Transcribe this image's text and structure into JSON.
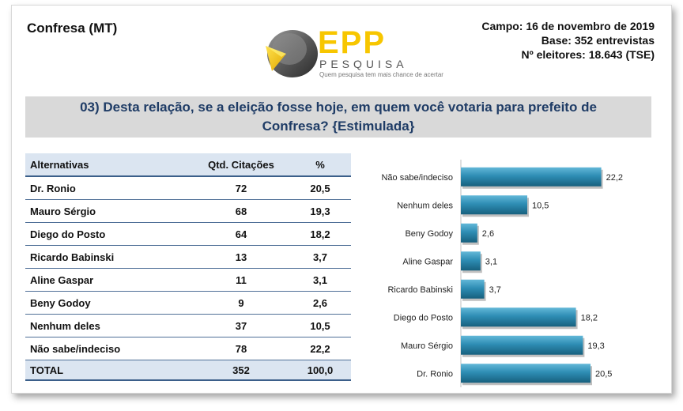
{
  "header": {
    "place": "Confresa (MT)",
    "field_date": "Campo: 16 de novembro de 2019",
    "base": "Base: 352 entrevistas",
    "voters": "Nº eleitores: 18.643 (TSE)"
  },
  "logo": {
    "brand": "EPP",
    "subtitle": "PESQUISA",
    "tagline": "Quem pesquisa tem mais chance de acertar"
  },
  "question": "03) Desta relação, se a eleição fosse hoje, em quem você votaria para prefeito de Confresa? {Estimulada}",
  "table": {
    "headers": [
      "Alternativas",
      "Qtd. Citações",
      "%"
    ],
    "rows": [
      {
        "name": "Dr. Ronio",
        "count": "72",
        "pct": "20,5"
      },
      {
        "name": "Mauro Sérgio",
        "count": "68",
        "pct": "19,3"
      },
      {
        "name": "Diego do Posto",
        "count": "64",
        "pct": "18,2"
      },
      {
        "name": "Ricardo Babinski",
        "count": "13",
        "pct": "3,7"
      },
      {
        "name": "Aline Gaspar",
        "count": "11",
        "pct": "3,1"
      },
      {
        "name": "Beny Godoy",
        "count": "9",
        "pct": "2,6"
      },
      {
        "name": "Nenhum deles",
        "count": "37",
        "pct": "10,5"
      },
      {
        "name": "Não sabe/indeciso",
        "count": "78",
        "pct": "22,2"
      }
    ],
    "total": {
      "name": "TOTAL",
      "count": "352",
      "pct": "100,0"
    }
  },
  "chart_data": {
    "type": "bar",
    "orientation": "horizontal",
    "categories": [
      "Não sabe/indeciso",
      "Nenhum deles",
      "Beny Godoy",
      "Aline Gaspar",
      "Ricardo Babinski",
      "Diego do Posto",
      "Mauro Sérgio",
      "Dr. Ronio"
    ],
    "values": [
      22.2,
      10.5,
      2.6,
      3.1,
      3.7,
      18.2,
      19.3,
      20.5
    ],
    "value_labels": [
      "22,2",
      "10,5",
      "2,6",
      "3,1",
      "3,7",
      "18,2",
      "19,3",
      "20,5"
    ],
    "xlim": [
      0,
      25
    ],
    "grid": false,
    "legend": "none",
    "bar_color": "#2e8db4"
  }
}
